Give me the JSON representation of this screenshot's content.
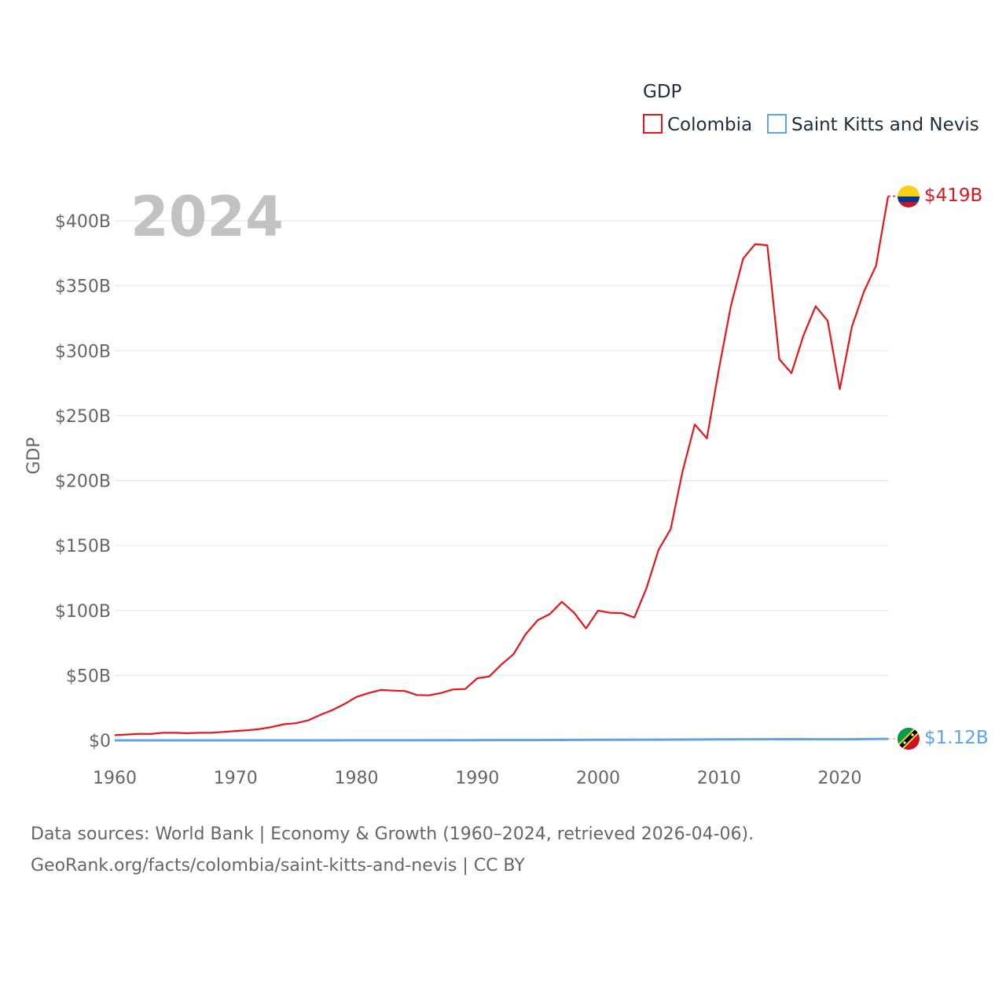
{
  "chart_data": {
    "type": "line",
    "title": "",
    "year_label": "2024",
    "ylabel": "GDP",
    "xlabel": "",
    "xlim": [
      1960,
      2024
    ],
    "ylim": [
      0,
      400
    ],
    "y_unit": "billion USD",
    "grid": true,
    "x_ticks": [
      1960,
      1970,
      1980,
      1990,
      2000,
      2010,
      2020
    ],
    "x_tick_labels": [
      "1960",
      "1970",
      "1980",
      "1990",
      "2000",
      "2010",
      "2020"
    ],
    "y_ticks": [
      0,
      50,
      100,
      150,
      200,
      250,
      300,
      350,
      400
    ],
    "y_tick_labels": [
      "$0",
      "$50B",
      "$100B",
      "$150B",
      "$200B",
      "$250B",
      "$300B",
      "$350B",
      "$400B"
    ],
    "legend": {
      "title": "GDP",
      "position": "top-right",
      "entries": [
        "Colombia",
        "Saint Kitts and Nevis"
      ]
    },
    "series": [
      {
        "name": "Colombia",
        "color": "#e8141c",
        "end_label": "$419B",
        "flag": "colombia-flag",
        "x": [
          1960,
          1961,
          1962,
          1963,
          1964,
          1965,
          1966,
          1967,
          1968,
          1969,
          1970,
          1971,
          1972,
          1973,
          1974,
          1975,
          1976,
          1977,
          1978,
          1979,
          1980,
          1981,
          1982,
          1983,
          1984,
          1985,
          1986,
          1987,
          1988,
          1989,
          1990,
          1991,
          1992,
          1993,
          1994,
          1995,
          1996,
          1997,
          1998,
          1999,
          2000,
          2001,
          2002,
          2003,
          2004,
          2005,
          2006,
          2007,
          2008,
          2009,
          2010,
          2011,
          2012,
          2013,
          2014,
          2015,
          2016,
          2017,
          2018,
          2019,
          2020,
          2021,
          2022,
          2023,
          2024
        ],
        "values": [
          4.0,
          4.5,
          5.0,
          4.9,
          5.9,
          5.8,
          5.5,
          5.8,
          5.9,
          6.5,
          7.2,
          7.8,
          8.7,
          10.3,
          12.4,
          13.2,
          15.4,
          19.6,
          23.3,
          27.9,
          33.4,
          36.4,
          38.8,
          38.3,
          38.0,
          34.9,
          34.7,
          36.4,
          39.2,
          39.5,
          47.8,
          49.2,
          58.4,
          66.4,
          81.7,
          92.5,
          97.2,
          106.7,
          98.4,
          86.2,
          99.9,
          98.2,
          97.9,
          94.6,
          117.1,
          146.6,
          162.6,
          207.5,
          243.2,
          232.5,
          286.1,
          334.9,
          370.9,
          382.1,
          381.2,
          293.5,
          282.7,
          311.9,
          334.2,
          323.0,
          270.3,
          318.5,
          345.6,
          365.4,
          419.0
        ]
      },
      {
        "name": "Saint Kitts and Nevis",
        "color": "#5ca4e8",
        "end_label": "$1.12B",
        "flag": "saint-kitts-and-nevis-flag",
        "x": [
          1960,
          1965,
          1970,
          1975,
          1980,
          1985,
          1990,
          1995,
          2000,
          2005,
          2010,
          2015,
          2020,
          2021,
          2022,
          2023,
          2024
        ],
        "values": [
          0.01,
          0.01,
          0.02,
          0.03,
          0.05,
          0.08,
          0.16,
          0.26,
          0.4,
          0.53,
          0.76,
          0.93,
          0.87,
          0.86,
          0.94,
          1.05,
          1.12
        ]
      }
    ]
  },
  "source": {
    "line1": "Data sources: World Bank | Economy & Growth (1960–2024, retrieved 2026-04-06).",
    "line2": "GeoRank.org/facts/colombia/saint-kitts-and-nevis | CC BY"
  }
}
